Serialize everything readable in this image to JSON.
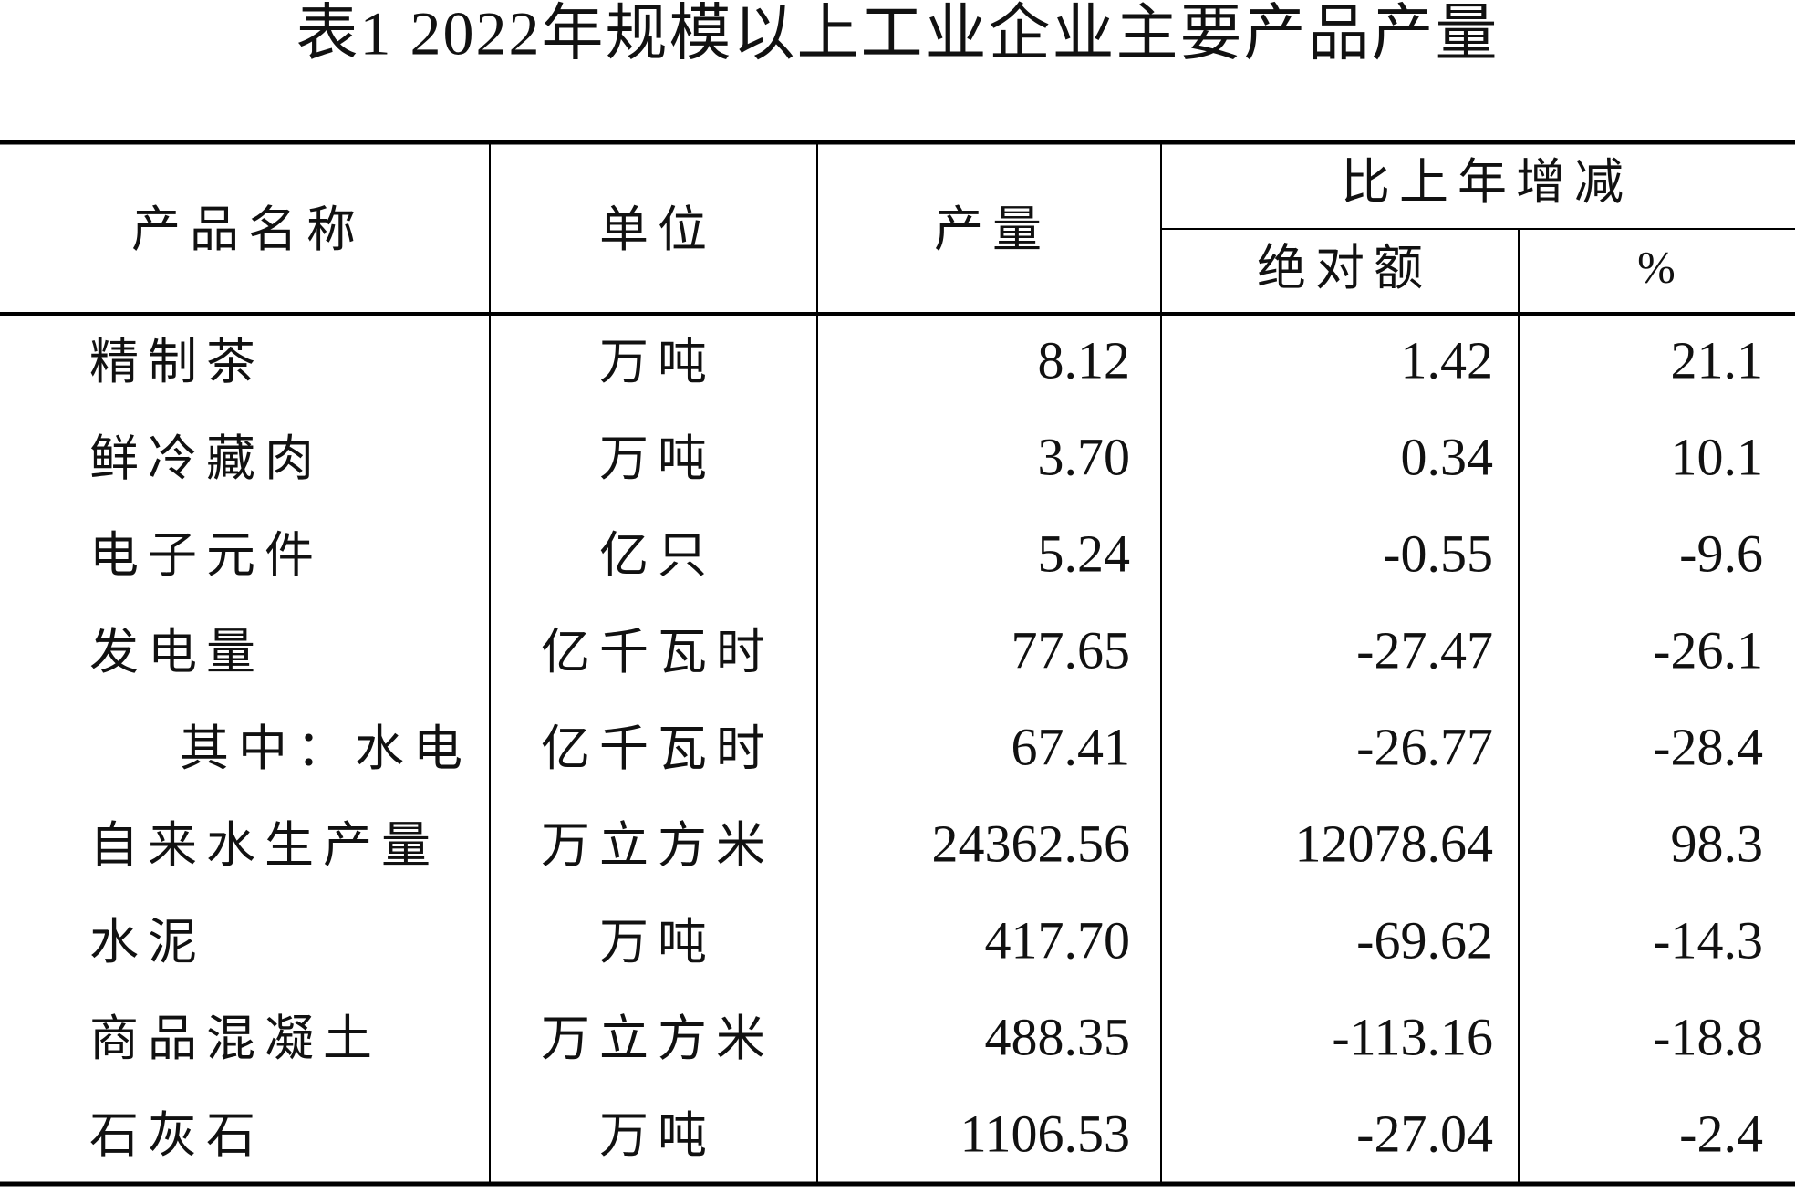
{
  "title": "表1  2022年规模以上工业企业主要产品产量",
  "table": {
    "header": {
      "name": "产品名称",
      "unit": "单位",
      "output": "产量",
      "change": "比上年增减",
      "absolute": "绝对额",
      "percent": "%"
    },
    "rows": [
      [
        "精制茶",
        "万吨",
        "8.12",
        "1.42",
        "21.1"
      ],
      [
        "鲜冷藏肉",
        "万吨",
        "3.70",
        "0.34",
        "10.1"
      ],
      [
        "电子元件",
        "亿只",
        "5.24",
        "-0.55",
        "-9.6"
      ],
      [
        "发电量",
        "亿千瓦时",
        "77.65",
        "-27.47",
        "-26.1"
      ],
      [
        "其中：水电",
        "亿千瓦时",
        "67.41",
        "-26.77",
        "-28.4"
      ],
      [
        "自来水生产量",
        "万立方米",
        "24362.56",
        "12078.64",
        "98.3"
      ],
      [
        "水泥",
        "万吨",
        "417.70",
        "-69.62",
        "-14.3"
      ],
      [
        "商品混凝土",
        "万立方米",
        "488.35",
        "-113.16",
        "-18.8"
      ],
      [
        "石灰石",
        "万吨",
        "1106.53",
        "-27.04",
        "-2.4"
      ]
    ]
  }
}
